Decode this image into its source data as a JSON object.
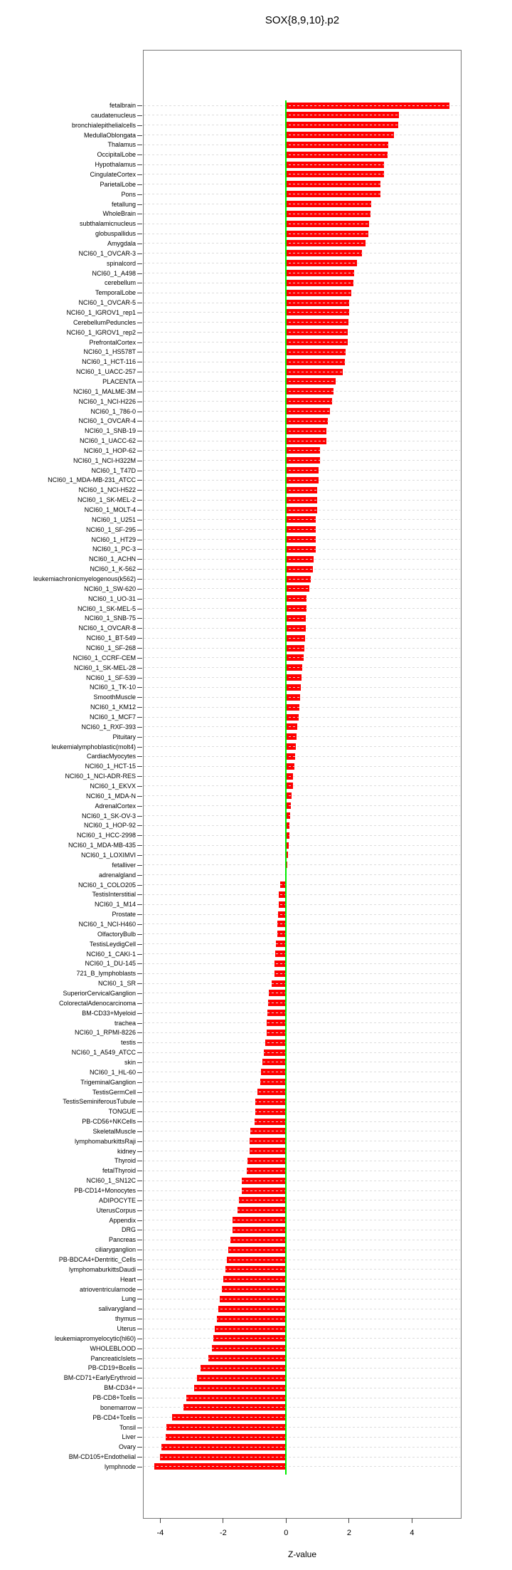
{
  "chart_data": {
    "type": "bar",
    "orientation": "horizontal",
    "title": "SOX{8,9,10}.p2",
    "xlabel": "Z-value",
    "xticks": [
      -4,
      -2,
      0,
      2,
      4
    ],
    "xlim": [
      -4.55,
      5.55
    ],
    "grid": "dotted horizontal line per row, drawn over bars",
    "legend": "none",
    "bar_color": "#ff0000",
    "zero_line_color": "#00ee00",
    "axis_color": "#7a7a7a",
    "categories": [
      "fetalbrain",
      "caudatenucleus",
      "bronchialepithelialcells",
      "MedullaOblongata",
      "Thalamus",
      "OccipitalLobe",
      "Hypothalamus",
      "CingulateCortex",
      "ParietalLobe",
      "Pons",
      "fetallung",
      "WholeBrain",
      "subthalamicnucleus",
      "globuspallidus",
      "Amygdala",
      "NCI60_1_OVCAR-3",
      "spinalcord",
      "NCI60_1_A498",
      "cerebellum",
      "TemporalLobe",
      "NCI60_1_OVCAR-5",
      "NCI60_1_IGROV1_rep1",
      "CerebellumPeduncles",
      "NCI60_1_IGROV1_rep2",
      "PrefrontalCortex",
      "NCI60_1_HS578T",
      "NCI60_1_HCT-116",
      "NCI60_1_UACC-257",
      "PLACENTA",
      "NCI60_1_MALME-3M",
      "NCI60_1_NCI-H226",
      "NCI60_1_786-0",
      "NCI60_1_OVCAR-4",
      "NCI60_1_SNB-19",
      "NCI60_1_UACC-62",
      "NCI60_1_HOP-62",
      "NCI60_1_NCI-H322M",
      "NCI60_1_T47D",
      "NCI60_1_MDA-MB-231_ATCC",
      "NCI60_1_NCI-H522",
      "NCI60_1_SK-MEL-2",
      "NCI60_1_MOLT-4",
      "NCI60_1_U251",
      "NCI60_1_SF-295",
      "NCI60_1_HT29",
      "NCI60_1_PC-3",
      "NCI60_1_ACHN",
      "NCI60_1_K-562",
      "leukemiachronicmyelogenous(k562)",
      "NCI60_1_SW-620",
      "NCI60_1_UO-31",
      "NCI60_1_SK-MEL-5",
      "NCI60_1_SNB-75",
      "NCI60_1_OVCAR-8",
      "NCI60_1_BT-549",
      "NCI60_1_SF-268",
      "NCI60_1_CCRF-CEM",
      "NCI60_1_SK-MEL-28",
      "NCI60_1_SF-539",
      "NCI60_1_TK-10",
      "SmoothMuscle",
      "NCI60_1_KM12",
      "NCI60_1_MCF7",
      "NCI60_1_RXF-393",
      "Pituitary",
      "leukemialymphoblastic(molt4)",
      "CardiacMyocytes",
      "NCI60_1_HCT-15",
      "NCI60_1_NCI-ADR-RES",
      "NCI60_1_EKVX",
      "NCI60_1_MDA-N",
      "AdrenalCortex",
      "NCI60_1_SK-OV-3",
      "NCI60_1_HOP-92",
      "NCI60_1_HCC-2998",
      "NCI60_1_MDA-MB-435",
      "NCI60_1_LOXIMVI",
      "fetalliver",
      "adrenalgland",
      "NCI60_1_COLO205",
      "TestisInterstitial",
      "NCI60_1_M14",
      "Prostate",
      "NCI60_1_NCI-H460",
      "OlfactoryBulb",
      "TestisLeydigCell",
      "NCI60_1_CAKI-1",
      "NCI60_1_DU-145",
      "721_B_lymphoblasts",
      "NCI60_1_SR",
      "SuperiorCervicalGanglion",
      "ColorectalAdenocarcinoma",
      "BM-CD33+Myeloid",
      "trachea",
      "NCI60_1_RPMI-8226",
      "testis",
      "NCI60_1_A549_ATCC",
      "skin",
      "NCI60_1_HL-60",
      "TrigeminalGanglion",
      "TestisGermCell",
      "TestisSeminiferousTubule",
      "TONGUE",
      "PB-CD56+NKCells",
      "SkeletalMuscle",
      "lymphomaburkittsRaji",
      "kidney",
      "Thyroid",
      "fetalThyroid",
      "NCI60_1_SN12C",
      "PB-CD14+Monocytes",
      "ADIPOCYTE",
      "UterusCorpus",
      "Appendix",
      "DRG",
      "Pancreas",
      "ciliaryganglion",
      "PB-BDCA4+Dentritic_Cells",
      "lymphomaburkittsDaudi",
      "Heart",
      "atrioventricularnode",
      "Lung",
      "salivarygland",
      "thymus",
      "Uterus",
      "leukemiapromyelocytic(hl60)",
      "WHOLEBLOOD",
      "PancreaticIslets",
      "PB-CD19+Bcells",
      "BM-CD71+EarlyErythroid",
      "BM-CD34+",
      "PB-CD8+Tcells",
      "bonemarrow",
      "PB-CD4+Tcells",
      "Tonsil",
      "Liver",
      "Ovary",
      "BM-CD105+Endothelial",
      "lymphnode"
    ],
    "values": [
      5.19,
      3.59,
      3.57,
      3.43,
      3.25,
      3.22,
      3.11,
      3.11,
      3.0,
      3.0,
      2.7,
      2.68,
      2.63,
      2.61,
      2.53,
      2.4,
      2.26,
      2.16,
      2.14,
      2.08,
      2.01,
      2.01,
      1.97,
      1.96,
      1.96,
      1.9,
      1.86,
      1.8,
      1.58,
      1.51,
      1.45,
      1.4,
      1.33,
      1.29,
      1.29,
      1.08,
      1.08,
      1.03,
      1.02,
      0.99,
      0.98,
      0.98,
      0.95,
      0.95,
      0.95,
      0.93,
      0.87,
      0.84,
      0.78,
      0.74,
      0.65,
      0.65,
      0.63,
      0.62,
      0.6,
      0.57,
      0.55,
      0.52,
      0.5,
      0.47,
      0.45,
      0.42,
      0.39,
      0.36,
      0.32,
      0.3,
      0.28,
      0.26,
      0.22,
      0.22,
      0.18,
      0.16,
      0.12,
      0.1,
      0.1,
      0.09,
      0.06,
      0.03,
      -0.04,
      -0.2,
      -0.24,
      -0.24,
      -0.26,
      -0.29,
      -0.29,
      -0.33,
      -0.35,
      -0.36,
      -0.38,
      -0.45,
      -0.54,
      -0.57,
      -0.6,
      -0.62,
      -0.62,
      -0.66,
      -0.7,
      -0.76,
      -0.8,
      -0.82,
      -0.92,
      -0.99,
      -0.99,
      -1.01,
      -1.13,
      -1.15,
      -1.17,
      -1.22,
      -1.24,
      -1.4,
      -1.42,
      -1.51,
      -1.55,
      -1.71,
      -1.71,
      -1.78,
      -1.83,
      -1.88,
      -1.94,
      -2.0,
      -2.05,
      -2.1,
      -2.16,
      -2.21,
      -2.27,
      -2.31,
      -2.35,
      -2.46,
      -2.73,
      -2.83,
      -2.93,
      -3.17,
      -3.26,
      -3.63,
      -3.8,
      -3.83,
      -3.97,
      -4.01,
      -4.18
    ]
  }
}
